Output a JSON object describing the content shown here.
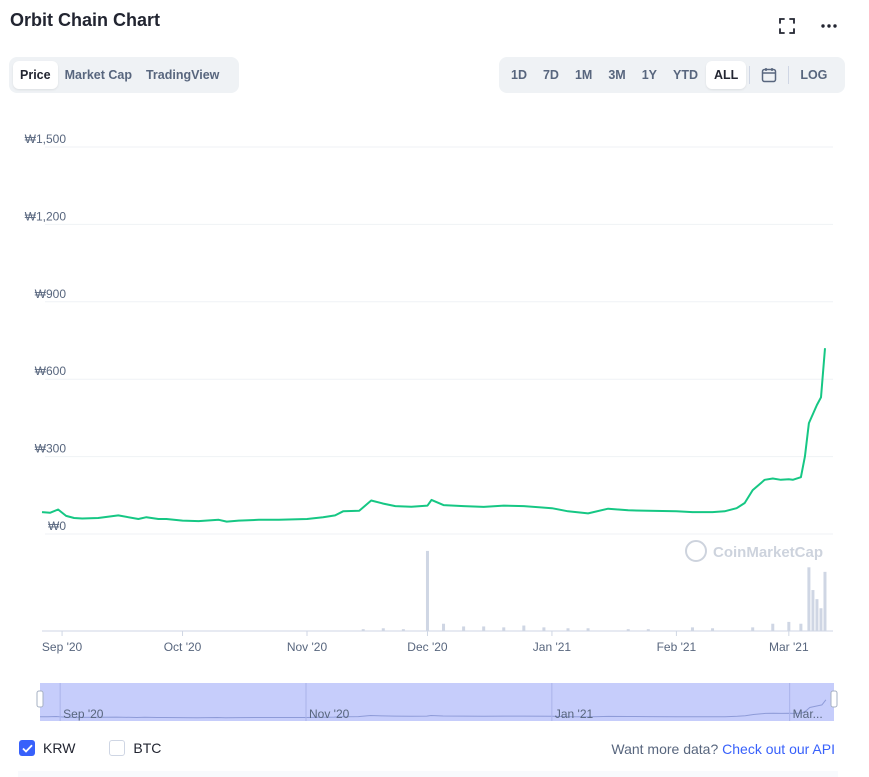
{
  "header": {
    "title": "Orbit Chain Chart"
  },
  "tabs_left": [
    "Price",
    "Market Cap",
    "TradingView"
  ],
  "tabs_left_active": 0,
  "tabs_right": [
    "1D",
    "7D",
    "1M",
    "3M",
    "1Y",
    "YTD",
    "ALL"
  ],
  "tabs_right_active": 6,
  "log_label": "LOG",
  "icons": {
    "fullscreen": "fullscreen-icon",
    "more": "more-dots-icon",
    "calendar": "calendar-icon",
    "check": "check-icon"
  },
  "watermark": "CoinMarketCap",
  "legend": {
    "krw": "KRW",
    "btc": "BTC",
    "krw_checked": true,
    "btc_checked": false
  },
  "footer": {
    "prompt": "Want more data?",
    "link": "Check out our API"
  },
  "colors": {
    "line": "#16c784",
    "accent": "#3861fb",
    "volume": "#cfd6e4",
    "navigator_fill": "#c6cdfb"
  },
  "chart_data": {
    "type": "line",
    "y_tick_labels": [
      "₩0",
      "₩300",
      "₩600",
      "₩900",
      "₩1,200",
      "₩1,500"
    ],
    "y_ticks": [
      0,
      300,
      600,
      900,
      1200,
      1500
    ],
    "ylim": [
      0,
      1500
    ],
    "x_tick_labels": [
      "Sep '20",
      "Oct '20",
      "Nov '20",
      "Dec '20",
      "Jan '21",
      "Feb '21",
      "Mar '21"
    ],
    "x_ticks": [
      "2020-09-01",
      "2020-10-01",
      "2020-11-01",
      "2020-12-01",
      "2021-01-01",
      "2021-02-01",
      "2021-03-01"
    ],
    "xlim": [
      "2020-08-27",
      "2021-03-12"
    ],
    "navigator_tick_labels": [
      "Sep '20",
      "Nov '20",
      "Jan '21",
      "Mar..."
    ],
    "navigator_ticks": [
      "2020-09-01",
      "2020-11-01",
      "2021-01-01",
      "2021-03-01"
    ],
    "series": [
      {
        "x": [
          "2020-08-27",
          "2020-08-29",
          "2020-08-31",
          "2020-09-02",
          "2020-09-04",
          "2020-09-06",
          "2020-09-10",
          "2020-09-15",
          "2020-09-20",
          "2020-09-22",
          "2020-09-25",
          "2020-09-27",
          "2020-10-01",
          "2020-10-05",
          "2020-10-10",
          "2020-10-12",
          "2020-10-15",
          "2020-10-20",
          "2020-10-25",
          "2020-11-01",
          "2020-11-05",
          "2020-11-08",
          "2020-11-10",
          "2020-11-14",
          "2020-11-17",
          "2020-11-20",
          "2020-11-23",
          "2020-11-27",
          "2020-12-01",
          "2020-12-02",
          "2020-12-05",
          "2020-12-10",
          "2020-12-15",
          "2020-12-20",
          "2020-12-25",
          "2021-01-01",
          "2021-01-05",
          "2021-01-10",
          "2021-01-15",
          "2021-01-20",
          "2021-01-25",
          "2021-02-01",
          "2021-02-05",
          "2021-02-10",
          "2021-02-13",
          "2021-02-16",
          "2021-02-18",
          "2021-02-20",
          "2021-02-23",
          "2021-02-25",
          "2021-02-27",
          "2021-03-01",
          "2021-03-02",
          "2021-03-04",
          "2021-03-05",
          "2021-03-06",
          "2021-03-08",
          "2021-03-09",
          "2021-03-10"
        ],
        "values": [
          85,
          82,
          95,
          70,
          62,
          60,
          62,
          72,
          58,
          65,
          58,
          58,
          52,
          50,
          55,
          48,
          52,
          55,
          55,
          58,
          65,
          72,
          88,
          90,
          130,
          118,
          108,
          106,
          110,
          132,
          112,
          108,
          105,
          110,
          108,
          100,
          88,
          80,
          98,
          92,
          90,
          88,
          85,
          85,
          88,
          100,
          120,
          170,
          210,
          215,
          210,
          212,
          210,
          220,
          300,
          430,
          500,
          530,
          720
        ]
      }
    ],
    "volume": {
      "x": [
        "2020-11-15",
        "2020-11-20",
        "2020-11-25",
        "2020-12-01",
        "2020-12-05",
        "2020-12-10",
        "2020-12-15",
        "2020-12-20",
        "2020-12-25",
        "2020-12-30",
        "2021-01-05",
        "2021-01-10",
        "2021-01-20",
        "2021-01-25",
        "2021-02-05",
        "2021-02-10",
        "2021-02-20",
        "2021-02-25",
        "2021-03-01",
        "2021-03-04",
        "2021-03-06",
        "2021-03-07",
        "2021-03-08",
        "2021-03-09",
        "2021-03-10"
      ],
      "values": [
        2,
        3,
        2,
        88,
        8,
        5,
        5,
        4,
        6,
        4,
        3,
        3,
        2,
        2,
        4,
        3,
        4,
        8,
        10,
        8,
        70,
        45,
        35,
        25,
        65
      ]
    }
  }
}
